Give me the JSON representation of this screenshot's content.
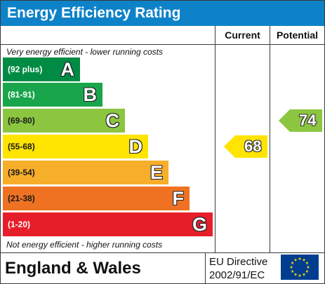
{
  "header": {
    "title": "Energy Efficiency Rating"
  },
  "columns": {
    "current": "Current",
    "potential": "Potential"
  },
  "notes": {
    "top": "Very energy efficient - lower running costs",
    "bottom": "Not energy efficient - higher running costs"
  },
  "chart_data": {
    "type": "bar",
    "categories": [
      "A",
      "B",
      "C",
      "D",
      "E",
      "F",
      "G"
    ],
    "bands": [
      {
        "letter": "A",
        "range": "(92 plus)",
        "color": "#008b45"
      },
      {
        "letter": "B",
        "range": "(81-91)",
        "color": "#19a54c"
      },
      {
        "letter": "C",
        "range": "(69-80)",
        "color": "#8cc540"
      },
      {
        "letter": "D",
        "range": "(55-68)",
        "color": "#ffe400"
      },
      {
        "letter": "E",
        "range": "(39-54)",
        "color": "#f7ae2a"
      },
      {
        "letter": "F",
        "range": "(21-38)",
        "color": "#ef7223"
      },
      {
        "letter": "G",
        "range": "(1-20)",
        "color": "#e61e2a"
      }
    ],
    "current": {
      "value": "68",
      "band": "D",
      "color": "#ffe400"
    },
    "potential": {
      "value": "74",
      "band": "C",
      "color": "#8cc540"
    }
  },
  "footer": {
    "country": "England & Wales",
    "directive_line1": "EU Directive",
    "directive_line2": "2002/91/EC",
    "flag_icon": "eu-flag-icon",
    "star_color": "#ffde00"
  }
}
